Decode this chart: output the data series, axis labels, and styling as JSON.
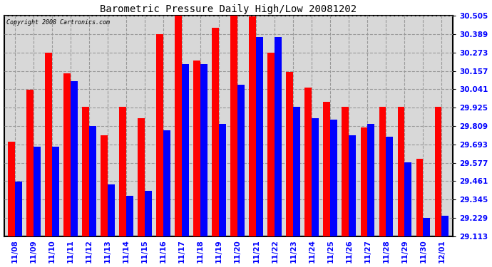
{
  "title": "Barometric Pressure Daily High/Low 20081202",
  "copyright": "Copyright 2008 Cartronics.com",
  "dates": [
    "11/08",
    "11/09",
    "11/10",
    "11/11",
    "11/12",
    "11/13",
    "11/14",
    "11/15",
    "11/16",
    "11/17",
    "11/18",
    "11/19",
    "11/20",
    "11/21",
    "11/22",
    "11/23",
    "11/24",
    "11/25",
    "11/26",
    "11/27",
    "11/28",
    "11/29",
    "11/30",
    "12/01"
  ],
  "highs": [
    29.71,
    30.04,
    30.27,
    30.14,
    29.93,
    29.75,
    29.93,
    29.86,
    30.39,
    30.51,
    30.22,
    30.43,
    30.51,
    30.5,
    30.27,
    30.15,
    30.05,
    29.96,
    29.93,
    29.8,
    29.93,
    29.93,
    29.6,
    29.93
  ],
  "lows": [
    29.46,
    29.68,
    29.68,
    30.09,
    29.81,
    29.44,
    29.37,
    29.4,
    29.78,
    30.2,
    30.2,
    29.82,
    30.07,
    30.37,
    30.37,
    29.93,
    29.86,
    29.85,
    29.75,
    29.82,
    29.74,
    29.58,
    29.23,
    29.24
  ],
  "ylim_min": 29.113,
  "ylim_max": 30.505,
  "yticks": [
    29.113,
    29.229,
    29.345,
    29.461,
    29.577,
    29.693,
    29.809,
    29.925,
    30.041,
    30.157,
    30.273,
    30.389,
    30.505
  ],
  "high_color": "#ff0000",
  "low_color": "#0000ff",
  "bg_color": "#d8d8d8",
  "grid_color": "#999999",
  "bar_width": 0.38
}
